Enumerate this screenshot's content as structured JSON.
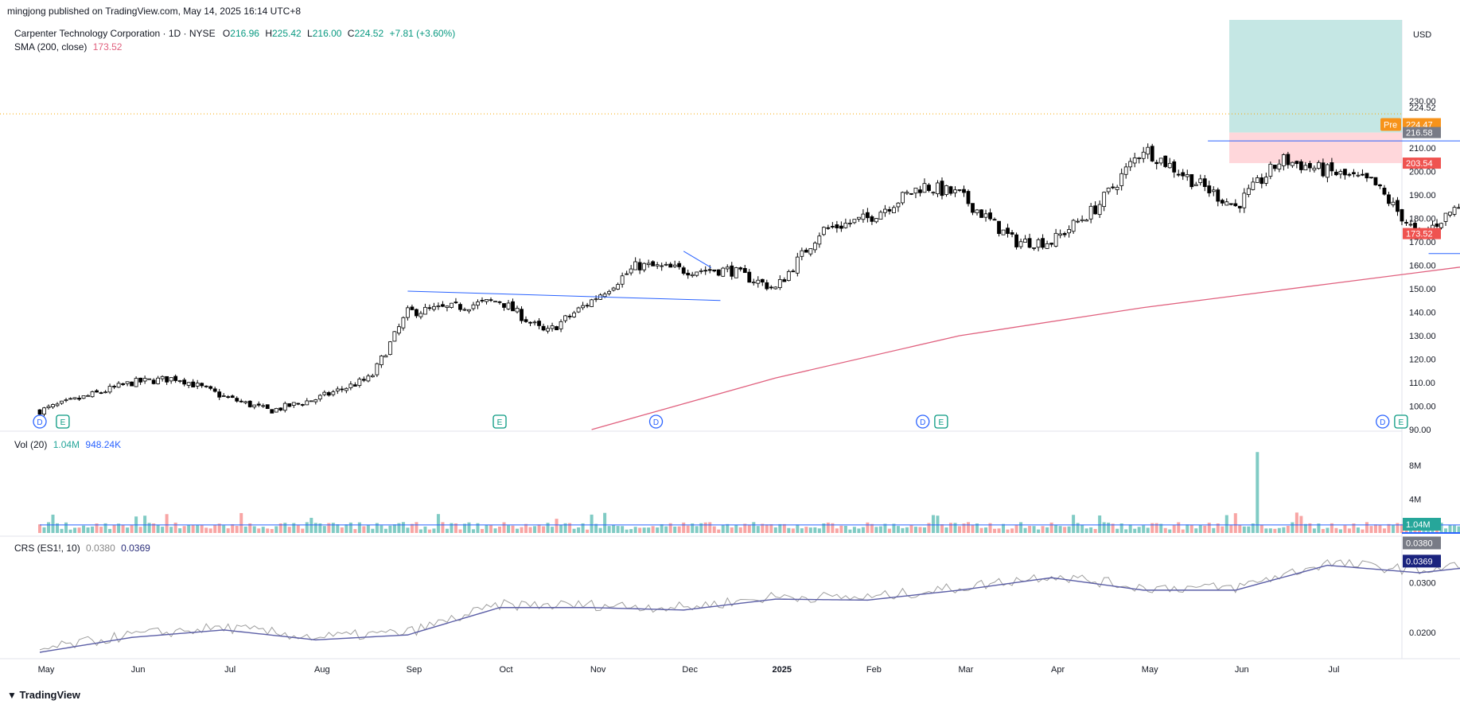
{
  "header": {
    "published": "mingjong published on TradingView.com, May 14, 2025 16:14 UTC+8"
  },
  "legend": {
    "title": "Carpenter Technology Corporation · 1D · NYSE",
    "o_label": "O",
    "o_value": "216.96",
    "h_label": "H",
    "h_value": "225.42",
    "l_label": "L",
    "l_value": "216.00",
    "c_label": "C",
    "c_value": "224.52",
    "change": "+7.81 (+3.60%)",
    "sma_label": "SMA (200, close)",
    "sma_value": "173.52"
  },
  "vol_legend": {
    "label": "Vol (20)",
    "v1": "1.04M",
    "v2": "948.24K"
  },
  "crs_legend": {
    "label": "CRS (ES1!, 10)",
    "v1": "0.0380",
    "v2": "0.0369"
  },
  "currency": "USD",
  "footer": {
    "logo_text": "TradingView"
  },
  "colors": {
    "up": "#26a69a",
    "down": "#ef5350",
    "candle_up_body": "#ffffff",
    "candle_down_body": "#000000",
    "sma": "#e0607e",
    "trend": "#2962ff",
    "crs_price": "#9e9e9e",
    "crs_avg": "#5b5ea6",
    "target_zone": "#b2dfdb",
    "stop_zone": "#ffcdd2",
    "pre_badge": "#f7931a"
  },
  "chart_data": {
    "type": "candlestick",
    "symbol": "CRS",
    "x_tick_labels": [
      "May",
      "Jun",
      "Jul",
      "Aug",
      "Sep",
      "Oct",
      "Nov",
      "Dec",
      "2025",
      "Feb",
      "Mar",
      "Apr",
      "May",
      "Jun",
      "Jul"
    ],
    "y_tick_labels": [
      "90.00",
      "100.00",
      "110.00",
      "120.00",
      "130.00",
      "140.00",
      "150.00",
      "160.00",
      "170.00",
      "180.00",
      "190.00",
      "200.00",
      "210.00",
      "230.00"
    ],
    "ylim": [
      90,
      240
    ],
    "price_labels": [
      {
        "value": "224.52",
        "kind": "last"
      },
      {
        "value": "224.47",
        "kind": "pre",
        "tag": "Pre"
      },
      {
        "value": "216.58",
        "kind": "entry"
      },
      {
        "value": "203.54",
        "kind": "stop"
      },
      {
        "value": "173.52",
        "kind": "sma"
      }
    ],
    "anchors": [
      {
        "m": 0,
        "c": 98
      },
      {
        "m": 0.5,
        "c": 104
      },
      {
        "m": 1,
        "c": 110
      },
      {
        "m": 1.5,
        "c": 112
      },
      {
        "m": 2,
        "c": 104
      },
      {
        "m": 2.5,
        "c": 98
      },
      {
        "m": 3,
        "c": 103
      },
      {
        "m": 3.6,
        "c": 112
      },
      {
        "m": 4,
        "c": 140
      },
      {
        "m": 4.5,
        "c": 142
      },
      {
        "m": 5,
        "c": 145
      },
      {
        "m": 5.5,
        "c": 131
      },
      {
        "m": 6,
        "c": 145
      },
      {
        "m": 6.5,
        "c": 160
      },
      {
        "m": 7,
        "c": 158
      },
      {
        "m": 7.5,
        "c": 158
      },
      {
        "m": 8,
        "c": 150
      },
      {
        "m": 8.5,
        "c": 175
      },
      {
        "m": 9,
        "c": 180
      },
      {
        "m": 9.6,
        "c": 194
      },
      {
        "m": 10,
        "c": 190
      },
      {
        "m": 10.6,
        "c": 170
      },
      {
        "m": 11,
        "c": 170
      },
      {
        "m": 11.5,
        "c": 185
      },
      {
        "m": 12,
        "c": 210
      },
      {
        "m": 12.5,
        "c": 197
      },
      {
        "m": 13,
        "c": 185
      },
      {
        "m": 13.5,
        "c": 205
      },
      {
        "m": 14,
        "c": 200
      },
      {
        "m": 14.5,
        "c": 195
      },
      {
        "m": 15,
        "c": 172
      },
      {
        "m": 15.5,
        "c": 188
      },
      {
        "m": 16,
        "c": 185
      },
      {
        "m": 16.4,
        "c": 145
      },
      {
        "m": 16.8,
        "c": 175
      },
      {
        "m": 17.2,
        "c": 170
      },
      {
        "m": 17.5,
        "c": 200
      },
      {
        "m": 17.8,
        "c": 205
      },
      {
        "m": 18,
        "c": 211
      },
      {
        "m": 18.2,
        "c": 216
      },
      {
        "m": 18.3,
        "c": 224.5
      }
    ],
    "sma200": [
      {
        "m": 6,
        "v": 90
      },
      {
        "m": 8,
        "v": 112
      },
      {
        "m": 10,
        "v": 130
      },
      {
        "m": 12,
        "v": 142
      },
      {
        "m": 14,
        "v": 152
      },
      {
        "m": 16,
        "v": 162
      },
      {
        "m": 18.3,
        "v": 173.5
      }
    ],
    "volume": {
      "unit": "M",
      "y_tick_labels": [
        "4M",
        "8M"
      ],
      "ylim": [
        0,
        10
      ],
      "avg": 0.95,
      "spike": {
        "m": 13.25,
        "v": 9.6
      }
    },
    "crs_ratio": {
      "y_tick_labels": [
        "0.0200",
        "0.0300"
      ],
      "ylim": [
        0.016,
        0.041
      ],
      "anchors": [
        {
          "m": 0,
          "v": 0.0165
        },
        {
          "m": 1,
          "v": 0.0195
        },
        {
          "m": 2,
          "v": 0.021
        },
        {
          "m": 3,
          "v": 0.019
        },
        {
          "m": 4,
          "v": 0.02
        },
        {
          "m": 5,
          "v": 0.0255
        },
        {
          "m": 6,
          "v": 0.0255
        },
        {
          "m": 7,
          "v": 0.025
        },
        {
          "m": 8,
          "v": 0.0272
        },
        {
          "m": 9,
          "v": 0.027
        },
        {
          "m": 10,
          "v": 0.029
        },
        {
          "m": 11,
          "v": 0.0315
        },
        {
          "m": 12,
          "v": 0.029
        },
        {
          "m": 13,
          "v": 0.029
        },
        {
          "m": 14,
          "v": 0.034
        },
        {
          "m": 15,
          "v": 0.0325
        },
        {
          "m": 16,
          "v": 0.0345
        },
        {
          "m": 17,
          "v": 0.0325
        },
        {
          "m": 18,
          "v": 0.0345
        },
        {
          "m": 18.3,
          "v": 0.038
        }
      ]
    },
    "event_markers": [
      {
        "m": 0,
        "label": "D",
        "kind": "dividend"
      },
      {
        "m": 0.25,
        "label": "E",
        "kind": "earnings"
      },
      {
        "m": 5,
        "label": "E",
        "kind": "earnings"
      },
      {
        "m": 6.7,
        "label": "D",
        "kind": "dividend"
      },
      {
        "m": 9.6,
        "label": "D",
        "kind": "dividend"
      },
      {
        "m": 9.8,
        "label": "E",
        "kind": "earnings"
      },
      {
        "m": 14.6,
        "label": "D",
        "kind": "dividend"
      },
      {
        "m": 14.8,
        "label": "E",
        "kind": "earnings"
      },
      {
        "m": 17.2,
        "label": "D",
        "kind": "dividend"
      },
      {
        "m": 17.4,
        "label": "E",
        "kind": "earnings"
      },
      {
        "m": 18.1,
        "label": "",
        "kind": "split"
      }
    ],
    "trend_lines": [
      {
        "m1": 4.0,
        "v1": 149,
        "m2": 7.4,
        "v2": 145
      },
      {
        "m1": 7.0,
        "v1": 166,
        "m2": 7.3,
        "v2": 159
      },
      {
        "m1": 12.7,
        "v1": 213,
        "m2": 18.4,
        "v2": 213
      },
      {
        "m1": 15.1,
        "v1": 165,
        "m2": 19.2,
        "v2": 165
      },
      {
        "m1": 18.0,
        "v1": 216,
        "m2": 18.6,
        "v2": 216
      }
    ],
    "position": {
      "entry": 216.58,
      "target": 240,
      "stop": 203.54
    }
  }
}
